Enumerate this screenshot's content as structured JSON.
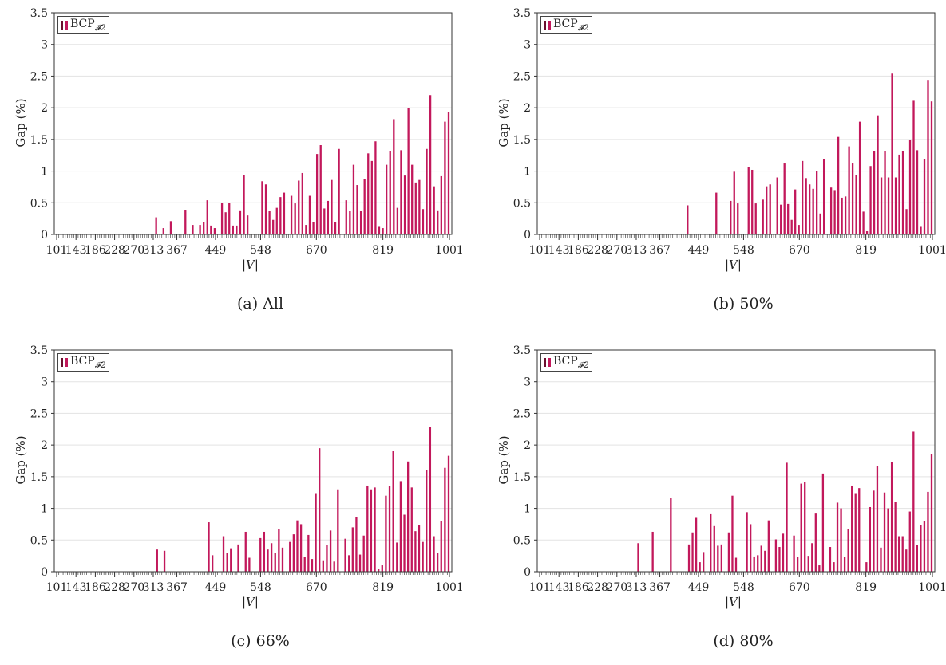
{
  "chart_data": [
    {
      "type": "bar",
      "caption": "(a) All",
      "legend": "BCP",
      "legend_sub": "𝓕2",
      "xlabel": "|V|",
      "ylabel": "Gap (%)",
      "ylim": [
        0,
        3.5
      ],
      "yticks": [
        "0",
        "0.5",
        "1",
        "1.5",
        "2",
        "2.5",
        "3",
        "3.5"
      ],
      "xticks": [
        "101",
        "143",
        "186",
        "228",
        "270",
        "313",
        "367",
        "449",
        "548",
        "670",
        "819",
        "1001"
      ],
      "grid": true,
      "legend_position": "top-left",
      "bar_color": "#c2185b",
      "values": [
        0,
        0,
        0,
        0,
        0,
        0,
        0,
        0,
        0,
        0,
        0,
        0,
        0,
        0,
        0,
        0,
        0,
        0,
        0,
        0,
        0,
        0,
        0,
        0,
        0,
        0,
        0,
        0.27,
        0,
        0.1,
        0,
        0.21,
        0,
        0,
        0,
        0.39,
        0,
        0.15,
        0,
        0.15,
        0.2,
        0.54,
        0.14,
        0.1,
        0,
        0.5,
        0.35,
        0.5,
        0.14,
        0.14,
        0.38,
        0.94,
        0.3,
        0,
        0,
        0,
        0.84,
        0.79,
        0.37,
        0.23,
        0.42,
        0.59,
        0.66,
        0,
        0.61,
        0.49,
        0.85,
        0.97,
        0.15,
        0.61,
        0.19,
        1.27,
        1.41,
        0.41,
        0.53,
        0.86,
        0.2,
        1.35,
        0,
        0.54,
        0.37,
        1.1,
        0.78,
        0.37,
        0.87,
        1.28,
        1.16,
        1.47,
        0.12,
        0.1,
        1.1,
        1.31,
        1.82,
        0.42,
        1.33,
        0.93,
        2.0,
        1.1,
        0.82,
        0.86,
        0.4,
        1.35,
        2.2,
        0.76,
        0.38,
        0.92,
        1.78,
        1.93
      ]
    },
    {
      "type": "bar",
      "caption": "(b) 50%",
      "legend": "BCP",
      "legend_sub": "𝓕2",
      "xlabel": "|V|",
      "ylabel": "Gap (%)",
      "ylim": [
        0,
        3.5
      ],
      "yticks": [
        "0",
        "0.5",
        "1",
        "1.5",
        "2",
        "2.5",
        "3",
        "3.5"
      ],
      "xticks": [
        "101",
        "143",
        "186",
        "228",
        "270",
        "313",
        "367",
        "449",
        "548",
        "670",
        "819",
        "1001"
      ],
      "grid": true,
      "legend_position": "top-left",
      "bar_color": "#c2185b",
      "values": [
        0,
        0,
        0,
        0,
        0,
        0,
        0,
        0,
        0,
        0,
        0,
        0,
        0,
        0,
        0,
        0,
        0,
        0,
        0,
        0,
        0,
        0,
        0,
        0,
        0,
        0,
        0,
        0,
        0,
        0,
        0,
        0,
        0,
        0,
        0,
        0,
        0,
        0,
        0,
        0,
        0,
        0.46,
        0,
        0,
        0,
        0,
        0,
        0,
        0,
        0.66,
        0,
        0,
        0,
        0.53,
        0.99,
        0.49,
        0,
        0,
        1.06,
        1.02,
        0.49,
        0,
        0.55,
        0.76,
        0.79,
        0,
        0.9,
        0.47,
        1.12,
        0.48,
        0.23,
        0.71,
        0.15,
        1.16,
        0.89,
        0.79,
        0.72,
        1.0,
        0.33,
        1.19,
        0,
        0.74,
        0.7,
        1.54,
        0.58,
        0.6,
        1.39,
        1.12,
        0.94,
        1.78,
        0.36,
        0.05,
        1.08,
        1.31,
        1.88,
        0.9,
        1.31,
        0.9,
        2.54,
        0.9,
        1.26,
        1.31,
        0.4,
        1.49,
        2.11,
        1.33,
        0.12,
        1.19,
        2.44,
        2.1
      ]
    },
    {
      "type": "bar",
      "caption": "(c) 66%",
      "legend": "BCP",
      "legend_sub": "𝓕2",
      "xlabel": "|V|",
      "ylabel": "Gap (%)",
      "ylim": [
        0,
        3.5
      ],
      "yticks": [
        "0",
        "0.5",
        "1",
        "1.5",
        "2",
        "2.5",
        "3",
        "3.5"
      ],
      "xticks": [
        "101",
        "143",
        "186",
        "228",
        "270",
        "313",
        "367",
        "449",
        "548",
        "670",
        "819",
        "1001"
      ],
      "grid": true,
      "legend_position": "top-left",
      "bar_color": "#c2185b",
      "values": [
        0,
        0,
        0,
        0,
        0,
        0,
        0,
        0,
        0,
        0,
        0,
        0,
        0,
        0,
        0,
        0,
        0,
        0,
        0,
        0,
        0,
        0,
        0,
        0,
        0,
        0,
        0,
        0.35,
        0,
        0.33,
        0,
        0,
        0,
        0,
        0,
        0,
        0,
        0,
        0,
        0,
        0,
        0.78,
        0.26,
        0,
        0,
        0.56,
        0.29,
        0.37,
        0,
        0.43,
        0,
        0.63,
        0.22,
        0,
        0,
        0.53,
        0.63,
        0.35,
        0.45,
        0.3,
        0.67,
        0.38,
        0,
        0.47,
        0.59,
        0.81,
        0.75,
        0.23,
        0.58,
        0.2,
        1.24,
        1.95,
        0.18,
        0.42,
        0.65,
        0.16,
        1.3,
        0,
        0.52,
        0.26,
        0.7,
        0.86,
        0.27,
        0.57,
        1.36,
        1.3,
        1.33,
        0.04,
        0.1,
        1.2,
        1.35,
        1.91,
        0.46,
        1.43,
        0.9,
        1.74,
        1.33,
        0.64,
        0.73,
        0.47,
        1.61,
        2.28,
        0.56,
        0.3,
        0.8,
        1.64,
        1.83
      ]
    },
    {
      "type": "bar",
      "caption": "(d) 80%",
      "legend": "BCP",
      "legend_sub": "𝓕2",
      "xlabel": "|V|",
      "ylabel": "Gap (%)",
      "ylim": [
        0,
        3.5
      ],
      "yticks": [
        "0",
        "0.5",
        "1",
        "1.5",
        "2",
        "2.5",
        "3",
        "3.5"
      ],
      "xticks": [
        "101",
        "143",
        "186",
        "228",
        "270",
        "313",
        "367",
        "449",
        "548",
        "670",
        "819",
        "1001"
      ],
      "grid": true,
      "legend_position": "top-left",
      "bar_color": "#c2185b",
      "values": [
        0,
        0,
        0,
        0,
        0,
        0,
        0,
        0,
        0,
        0,
        0,
        0,
        0,
        0,
        0,
        0,
        0,
        0,
        0,
        0,
        0,
        0,
        0,
        0,
        0,
        0,
        0,
        0.45,
        0,
        0,
        0,
        0.63,
        0,
        0,
        0,
        0,
        1.17,
        0,
        0,
        0,
        0,
        0.43,
        0.62,
        0.85,
        0.15,
        0.31,
        0,
        0.92,
        0.72,
        0.41,
        0.43,
        0,
        0.62,
        1.2,
        0.22,
        0,
        0,
        0.94,
        0.75,
        0.24,
        0.26,
        0.41,
        0.33,
        0.81,
        0,
        0.51,
        0.39,
        0.6,
        1.72,
        0,
        0.57,
        0.23,
        1.39,
        1.41,
        0.25,
        0.45,
        0.93,
        0.1,
        1.55,
        0,
        0.39,
        0.15,
        1.09,
        1.0,
        0.23,
        0.67,
        1.36,
        1.24,
        1.32,
        0,
        0.15,
        1.02,
        1.28,
        1.67,
        0.38,
        1.25,
        1.0,
        1.73,
        1.1,
        0.56,
        0.56,
        0.35,
        0.95,
        2.21,
        0.42,
        0.74,
        0.8,
        1.26,
        1.86
      ]
    }
  ]
}
